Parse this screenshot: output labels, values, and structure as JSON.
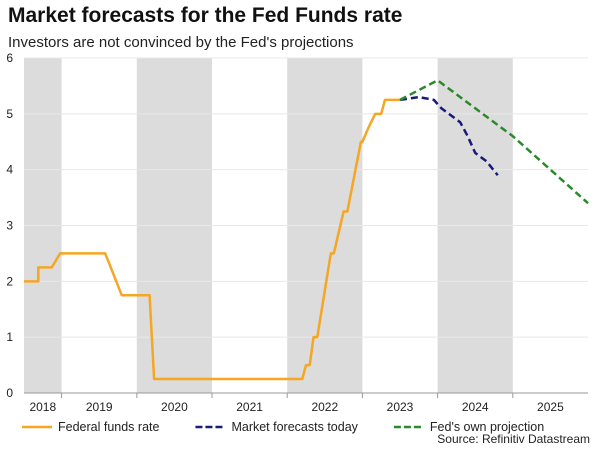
{
  "title": "Market forecasts for the Fed Funds rate",
  "subtitle": "Investors are not convinced by the Fed's projections",
  "source": "Source: Refinitiv Datastream",
  "chart_data": {
    "type": "line",
    "xlim": [
      2018.5,
      2026.0
    ],
    "ylim": [
      0,
      6
    ],
    "yticks": [
      0,
      1,
      2,
      3,
      4,
      5,
      6
    ],
    "xtick_labels": [
      "2018",
      "2019",
      "2020",
      "2021",
      "2022",
      "2023",
      "2024",
      "2025"
    ],
    "shaded_years": [
      2018,
      2020,
      2022,
      2024
    ],
    "grid": true,
    "legend": "bottom",
    "series": [
      {
        "name": "Federal funds rate",
        "color": "#f5a623",
        "dash": false,
        "x": [
          2018.5,
          2018.69,
          2018.69,
          2018.87,
          2018.87,
          2018.98,
          2018.98,
          2019.58,
          2019.8,
          2020.17,
          2020.17,
          2020.23,
          2022.2,
          2022.25,
          2022.3,
          2022.35,
          2022.4,
          2022.58,
          2022.62,
          2022.75,
          2022.8,
          2022.98,
          2023.0,
          2023.08,
          2023.17,
          2023.25,
          2023.3,
          2023.4,
          2023.5
        ],
        "y": [
          2.0,
          2.0,
          2.25,
          2.25,
          2.25,
          2.5,
          2.5,
          2.5,
          1.75,
          1.75,
          1.75,
          0.25,
          0.25,
          0.5,
          0.5,
          1.0,
          1.0,
          2.5,
          2.5,
          3.25,
          3.25,
          4.5,
          4.5,
          4.75,
          5.0,
          5.0,
          5.25,
          5.25,
          5.25
        ]
      },
      {
        "name": "Market forecasts today",
        "color": "#1a1a7a",
        "dash": true,
        "x": [
          2023.5,
          2023.75,
          2023.95,
          2024.05,
          2024.3,
          2024.4,
          2024.5,
          2024.65,
          2024.8
        ],
        "y": [
          5.25,
          5.3,
          5.25,
          5.1,
          4.85,
          4.6,
          4.3,
          4.15,
          3.9
        ]
      },
      {
        "name": "Fed's own projection",
        "color": "#2a8a2a",
        "dash": true,
        "x": [
          2023.5,
          2024.0,
          2025.0,
          2026.0
        ],
        "y": [
          5.25,
          5.6,
          4.6,
          3.4
        ]
      }
    ]
  }
}
